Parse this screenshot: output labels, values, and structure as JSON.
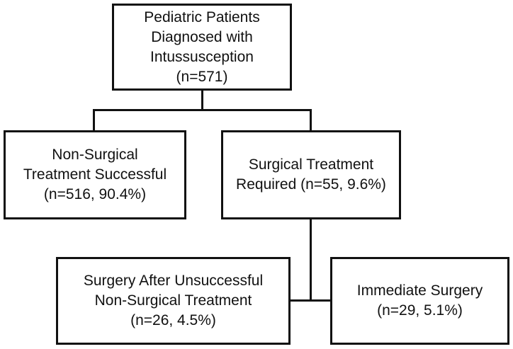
{
  "flowchart": {
    "nodes": {
      "root": {
        "lines": [
          "Pediatric Patients",
          "Diagnosed with",
          "Intussusception",
          "(n=571)"
        ],
        "n": 571
      },
      "non_surgical_success": {
        "lines": [
          "Non-Surgical",
          "Treatment Successful",
          "(n=516, 90.4%)"
        ],
        "n": 516,
        "percent": 90.4
      },
      "surgical_required": {
        "lines": [
          "Surgical Treatment",
          "Required (n=55, 9.6%)"
        ],
        "n": 55,
        "percent": 9.6
      },
      "surgery_after_unsuccessful": {
        "lines": [
          "Surgery After Unsuccessful",
          "Non-Surgical Treatment",
          "(n=26, 4.5%)"
        ],
        "n": 26,
        "percent": 4.5
      },
      "immediate_surgery": {
        "lines": [
          "Immediate Surgery",
          "(n=29, 5.1%)"
        ],
        "n": 29,
        "percent": 5.1
      }
    },
    "edges": [
      {
        "from": "root",
        "to": "non_surgical_success"
      },
      {
        "from": "root",
        "to": "surgical_required"
      },
      {
        "from": "surgical_required",
        "to": "surgery_after_unsuccessful"
      },
      {
        "from": "surgical_required",
        "to": "immediate_surgery"
      }
    ],
    "colors": {
      "box_border": "#111111",
      "text": "#111111",
      "connector": "#111111",
      "background": "#ffffff"
    }
  }
}
